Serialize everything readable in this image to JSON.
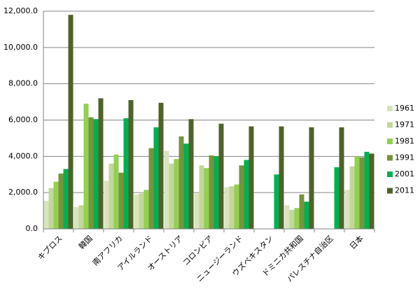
{
  "chart_data": {
    "type": "bar",
    "categories": [
      "キプロス",
      "韓国",
      "南アフリカ",
      "アイルランド",
      "オーストリア",
      "コロンビア",
      "ニュージーランド",
      "ウズベキスタン",
      "ドミニカ共和国",
      "パレスチナ自治区",
      "日本"
    ],
    "series": [
      {
        "name": "1961",
        "color": "#d7e4bd",
        "values": [
          1550,
          1200,
          2650,
          1900,
          4300,
          1950,
          2300,
          null,
          1300,
          null,
          2150
        ]
      },
      {
        "name": "1971",
        "color": "#c3d69b",
        "values": [
          2250,
          1300,
          3600,
          1950,
          3600,
          3500,
          2350,
          null,
          1050,
          null,
          3450
        ]
      },
      {
        "name": "1981",
        "color": "#92d050",
        "values": [
          2600,
          6900,
          4100,
          2150,
          3850,
          3350,
          2450,
          null,
          1150,
          null,
          4000
        ]
      },
      {
        "name": "1991",
        "color": "#77933c",
        "values": [
          3050,
          6150,
          3100,
          4450,
          5100,
          4050,
          3500,
          null,
          1900,
          null,
          3950
        ]
      },
      {
        "name": "2001",
        "color": "#00b050",
        "values": [
          3300,
          6050,
          6100,
          5600,
          4700,
          4000,
          3800,
          3000,
          1500,
          3400,
          4250
        ]
      },
      {
        "name": "2011",
        "color": "#4f6228",
        "values": [
          11800,
          7200,
          7100,
          6950,
          6050,
          5800,
          5650,
          5650,
          5600,
          5600,
          4150
        ]
      }
    ],
    "ylim": [
      0,
      12000
    ],
    "yticks": [
      {
        "value": 0,
        "label": "0.0"
      },
      {
        "value": 2000,
        "label": "2,000.0"
      },
      {
        "value": 4000,
        "label": "4,000.0"
      },
      {
        "value": 6000,
        "label": "6,000.0"
      },
      {
        "value": 8000,
        "label": "8,000.0"
      },
      {
        "value": 10000,
        "label": "10,000.0"
      },
      {
        "value": 12000,
        "label": "12,000.0"
      }
    ],
    "grid": true,
    "legend": "right"
  }
}
